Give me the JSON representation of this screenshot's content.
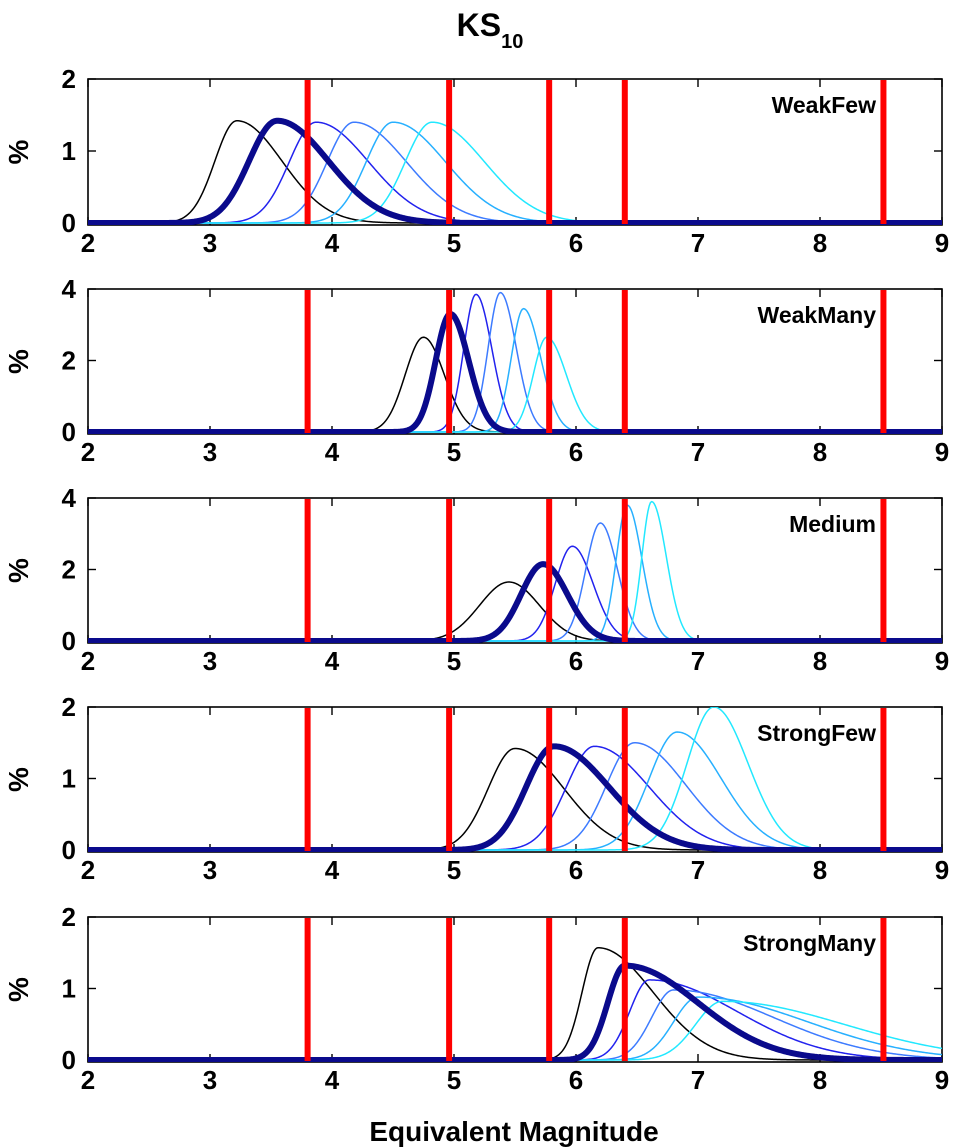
{
  "figure": {
    "title_main": "KS",
    "title_sub": "10",
    "xlabel": "Equivalent Magnitude"
  },
  "colors": {
    "red_lines": "#ff0000",
    "series": [
      "#000000",
      "#0a0a8c",
      "#2222ee",
      "#3d7bff",
      "#27b0ff",
      "#22e8ff"
    ],
    "series_widths": [
      1.5,
      6,
      1.5,
      1.5,
      1.5,
      1.5
    ]
  },
  "chart_data": [
    {
      "type": "line",
      "label": "WeakFew",
      "ylabel": "%",
      "xlim": [
        2,
        9
      ],
      "ylim": [
        0,
        2
      ],
      "xticks": [
        2,
        3,
        4,
        5,
        6,
        7,
        8,
        9
      ],
      "yticks": [
        0,
        1,
        2
      ],
      "vertical_lines": [
        3.8,
        4.96,
        5.78,
        6.4,
        8.52
      ],
      "series": [
        {
          "mu": 3.22,
          "peak": 1.42,
          "sl": 0.18,
          "sr": 0.37
        },
        {
          "mu": 3.55,
          "peak": 1.42,
          "sl": 0.23,
          "sr": 0.42
        },
        {
          "mu": 3.87,
          "peak": 1.4,
          "sl": 0.22,
          "sr": 0.43
        },
        {
          "mu": 4.18,
          "peak": 1.4,
          "sl": 0.22,
          "sr": 0.43
        },
        {
          "mu": 4.5,
          "peak": 1.4,
          "sl": 0.22,
          "sr": 0.43
        },
        {
          "mu": 4.82,
          "peak": 1.4,
          "sl": 0.22,
          "sr": 0.43
        }
      ]
    },
    {
      "type": "line",
      "label": "WeakMany",
      "ylabel": "%",
      "xlim": [
        2,
        9
      ],
      "ylim": [
        0,
        4
      ],
      "xticks": [
        2,
        3,
        4,
        5,
        6,
        7,
        8,
        9
      ],
      "yticks": [
        0,
        2,
        4
      ],
      "vertical_lines": [
        3.8,
        4.96,
        5.78,
        6.4,
        8.52
      ],
      "series": [
        {
          "mu": 4.75,
          "peak": 2.65,
          "sl": 0.15,
          "sr": 0.17
        },
        {
          "mu": 4.97,
          "peak": 3.3,
          "sl": 0.12,
          "sr": 0.15
        },
        {
          "mu": 5.18,
          "peak": 3.85,
          "sl": 0.1,
          "sr": 0.13
        },
        {
          "mu": 5.38,
          "peak": 3.9,
          "sl": 0.1,
          "sr": 0.13
        },
        {
          "mu": 5.57,
          "peak": 3.45,
          "sl": 0.1,
          "sr": 0.14
        },
        {
          "mu": 5.76,
          "peak": 2.65,
          "sl": 0.11,
          "sr": 0.16
        }
      ]
    },
    {
      "type": "line",
      "label": "Medium",
      "ylabel": "%",
      "xlim": [
        2,
        9
      ],
      "ylim": [
        0,
        4
      ],
      "xticks": [
        2,
        3,
        4,
        5,
        6,
        7,
        8,
        9
      ],
      "yticks": [
        0,
        2,
        4
      ],
      "vertical_lines": [
        3.8,
        4.96,
        5.78,
        6.4,
        8.52
      ],
      "series": [
        {
          "mu": 5.45,
          "peak": 1.65,
          "sl": 0.24,
          "sr": 0.25
        },
        {
          "mu": 5.73,
          "peak": 2.15,
          "sl": 0.18,
          "sr": 0.2
        },
        {
          "mu": 5.97,
          "peak": 2.65,
          "sl": 0.14,
          "sr": 0.17
        },
        {
          "mu": 6.2,
          "peak": 3.3,
          "sl": 0.12,
          "sr": 0.14
        },
        {
          "mu": 6.42,
          "peak": 3.8,
          "sl": 0.09,
          "sr": 0.12
        },
        {
          "mu": 6.62,
          "peak": 3.9,
          "sl": 0.08,
          "sr": 0.12
        }
      ]
    },
    {
      "type": "line",
      "label": "StrongFew",
      "ylabel": "%",
      "xlim": [
        2,
        9
      ],
      "ylim": [
        0,
        2
      ],
      "xticks": [
        2,
        3,
        4,
        5,
        6,
        7,
        8,
        9
      ],
      "yticks": [
        0,
        1,
        2
      ],
      "vertical_lines": [
        3.8,
        4.96,
        5.78,
        6.4,
        8.52
      ],
      "series": [
        {
          "mu": 5.5,
          "peak": 1.42,
          "sl": 0.22,
          "sr": 0.4
        },
        {
          "mu": 5.82,
          "peak": 1.45,
          "sl": 0.23,
          "sr": 0.45
        },
        {
          "mu": 6.15,
          "peak": 1.45,
          "sl": 0.23,
          "sr": 0.45
        },
        {
          "mu": 6.48,
          "peak": 1.5,
          "sl": 0.23,
          "sr": 0.42
        },
        {
          "mu": 6.83,
          "peak": 1.65,
          "sl": 0.23,
          "sr": 0.36
        },
        {
          "mu": 7.13,
          "peak": 2.0,
          "sl": 0.22,
          "sr": 0.28
        }
      ]
    },
    {
      "type": "line",
      "label": "StrongMany",
      "ylabel": "%",
      "xlim": [
        2,
        9
      ],
      "ylim": [
        0,
        2
      ],
      "xticks": [
        2,
        3,
        4,
        5,
        6,
        7,
        8,
        9
      ],
      "yticks": [
        0,
        1,
        2
      ],
      "vertical_lines": [
        3.8,
        4.96,
        5.78,
        6.4,
        8.52
      ],
      "series": [
        {
          "mu": 6.18,
          "peak": 1.57,
          "sl": 0.13,
          "sr": 0.45
        },
        {
          "mu": 6.4,
          "peak": 1.32,
          "sl": 0.14,
          "sr": 0.6
        },
        {
          "mu": 6.6,
          "peak": 1.12,
          "sl": 0.16,
          "sr": 0.72
        },
        {
          "mu": 6.8,
          "peak": 0.98,
          "sl": 0.18,
          "sr": 0.82
        },
        {
          "mu": 7.0,
          "peak": 0.88,
          "sl": 0.2,
          "sr": 0.9
        },
        {
          "mu": 7.2,
          "peak": 0.82,
          "sl": 0.22,
          "sr": 1.0
        }
      ]
    }
  ]
}
